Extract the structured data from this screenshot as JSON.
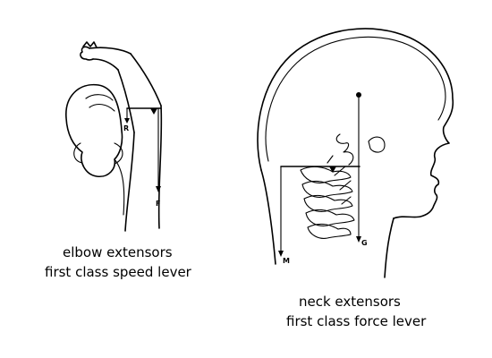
{
  "elbow": {
    "letters": {
      "r": "R",
      "f": "F"
    },
    "caption_line1": "elbow extensors",
    "caption_line2": "first class speed lever"
  },
  "neck": {
    "letters": {
      "m": "M",
      "g": "G"
    },
    "caption_line1": "neck extensors",
    "caption_line2": "first class force lever"
  }
}
